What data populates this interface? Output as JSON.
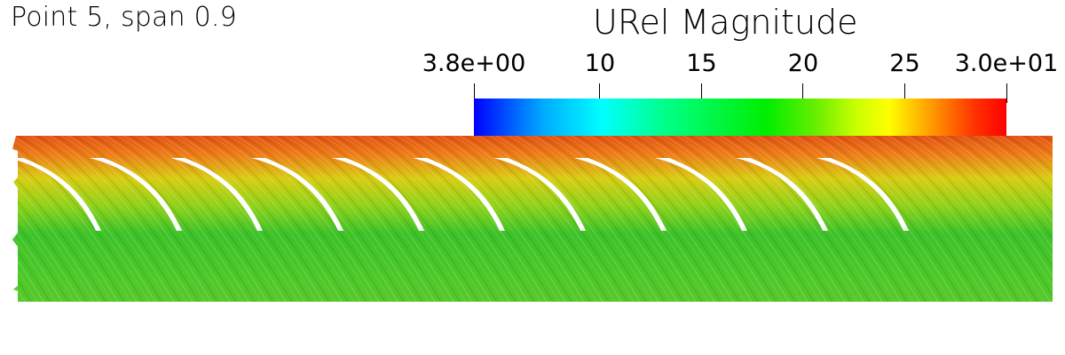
{
  "caption": "Point 5, span 0.9",
  "legend": {
    "title": "URel Magnitude",
    "range": [
      3.8,
      30.0
    ],
    "ticks": [
      {
        "value": 3.8,
        "label": "3.8e+00"
      },
      {
        "value": 10,
        "label": "10"
      },
      {
        "value": 15,
        "label": "15"
      },
      {
        "value": 20,
        "label": "20"
      },
      {
        "value": 25,
        "label": "25"
      },
      {
        "value": 30.0,
        "label": "3.0e+01"
      }
    ],
    "colormap": [
      "#0000ff",
      "#00ffff",
      "#00ee00",
      "#ffff00",
      "#ff0000"
    ]
  },
  "blades": {
    "count": 11
  }
}
